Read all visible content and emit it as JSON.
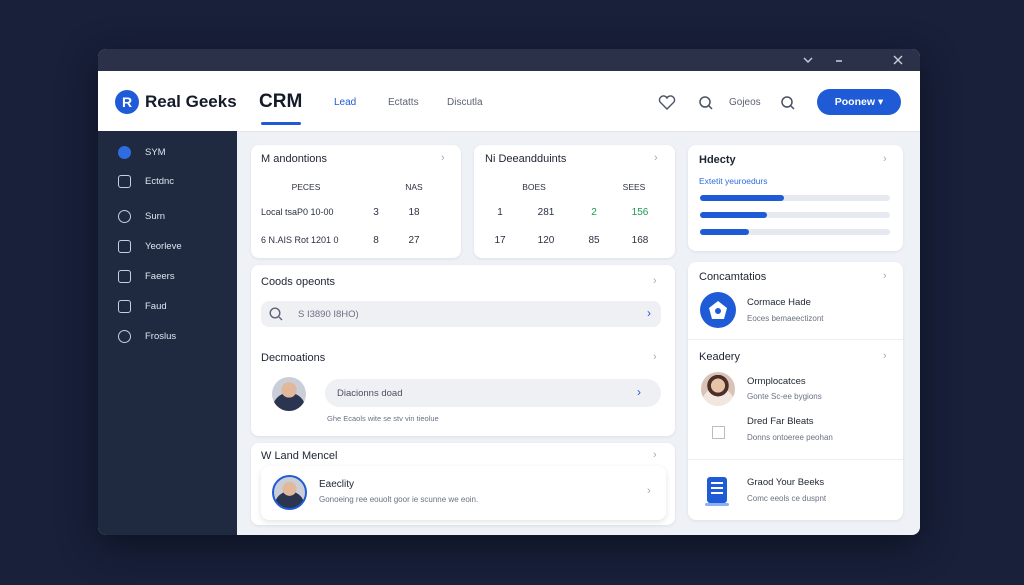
{
  "header": {
    "logo": "R",
    "brand": "Real Geeks",
    "app": "CRM",
    "nav": [
      "Lead",
      "Ectatts",
      "Discutla"
    ],
    "search": "Gojeos",
    "button": "Poonew"
  },
  "sidebar": {
    "items": [
      "SYM",
      "Ectdnc",
      "Surn",
      "Yeorleve",
      "Faeers",
      "Faud",
      "Froslus"
    ]
  },
  "card1": {
    "title": "M andontions",
    "headers": [
      "PECES",
      "NAS"
    ],
    "rows": [
      [
        "Local tsaP0 10-00",
        "3",
        "18"
      ],
      [
        "6 N.AIS Rot 1201 0",
        "8",
        "27"
      ]
    ]
  },
  "card2": {
    "title": "Ni Deeandduints",
    "headers": [
      "BOES",
      "SEES"
    ],
    "rows": [
      [
        "1",
        "281",
        "2",
        "156"
      ],
      [
        "17",
        "120",
        "85",
        "168"
      ]
    ]
  },
  "card3": {
    "title": "Hdecty",
    "subtitle": "Extetit yeuroedurs",
    "progress": [
      44,
      35,
      26
    ]
  },
  "card4": {
    "title": "Coods opeonts",
    "search": "S I3890 I8HO)"
  },
  "card5": {
    "title": "Decmoations",
    "input": "Diacionns doad",
    "note": "Ghe Ecaols wite se stv vin tieolue"
  },
  "card6": {
    "title": "W Land Mencel",
    "item_title": "Eaeclity",
    "item_desc": "Gonoeing ree eouolt goor ie scunne we eoin."
  },
  "card7": {
    "title": "Concamtatios",
    "item_title": "Cormace Hade",
    "item_desc": "Eoces bemaeectizont"
  },
  "card8": {
    "title": "Keadery",
    "items": [
      {
        "title": "Ormplocatces",
        "desc": "Gonte Sc-ee bygions"
      },
      {
        "title": "Dred Far Bleats",
        "desc": "Donns ontoeree peohan"
      },
      {
        "title": "Graod Your Beeks",
        "desc": "Comc eeols ce duspnt"
      }
    ]
  }
}
